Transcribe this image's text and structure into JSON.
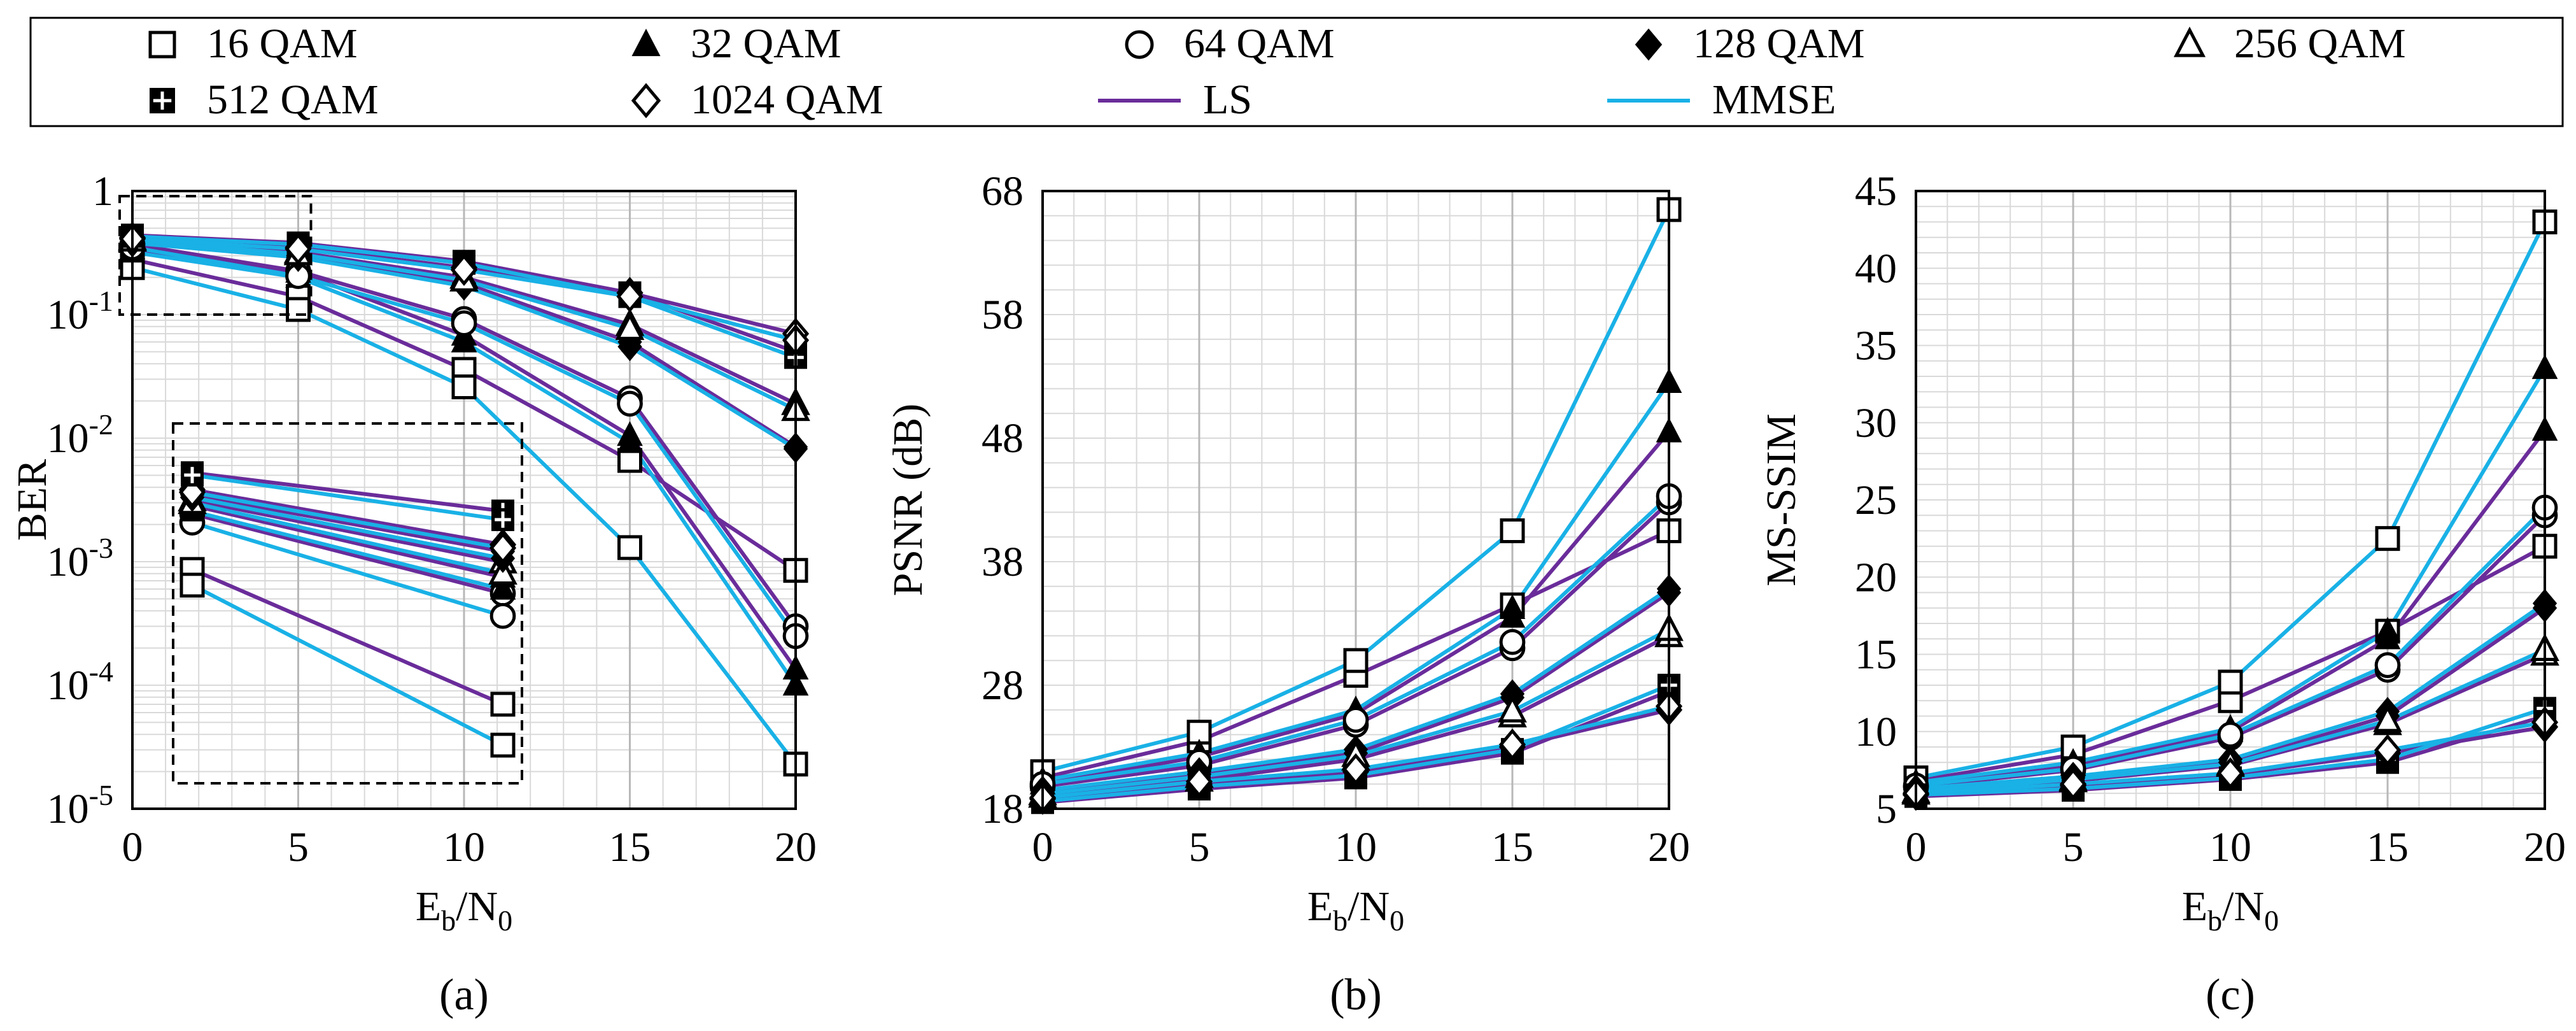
{
  "legend": {
    "entries": [
      {
        "key": "qam16",
        "label": "16 QAM",
        "marker": "square-open"
      },
      {
        "key": "qam32",
        "label": "32 QAM",
        "marker": "triangle-filled"
      },
      {
        "key": "qam64",
        "label": "64 QAM",
        "marker": "circle-open"
      },
      {
        "key": "qam128",
        "label": "128 QAM",
        "marker": "diamond-filled"
      },
      {
        "key": "qam256",
        "label": "256 QAM",
        "marker": "triangle-open"
      },
      {
        "key": "qam512",
        "label": "512 QAM",
        "marker": "square-plus-filled"
      },
      {
        "key": "qam1024",
        "label": "1024 QAM",
        "marker": "diamond-open"
      },
      {
        "key": "ls",
        "label": "LS",
        "line": "#6a2c9a"
      },
      {
        "key": "mmse",
        "label": "MMSE",
        "line": "#19b1e6"
      }
    ]
  },
  "colors": {
    "ls": "#6a2c9a",
    "mmse": "#19b1e6",
    "grid": "#d9d9d9",
    "inset": "#000000"
  },
  "chart_data": [
    {
      "id": "a",
      "type": "line",
      "panel_label": "(a)",
      "ylabel": "BER",
      "xlabel": "Eb/N0",
      "xlabel_main": "E",
      "xlabel_sub1": "b",
      "xlabel_mid": "/N",
      "xlabel_sub2": "0",
      "yscale": "log",
      "ylim": [
        1e-05,
        1
      ],
      "xlim": [
        0,
        20
      ],
      "x": [
        0,
        5,
        10,
        15,
        20
      ],
      "xticks": [
        "0",
        "5",
        "10",
        "15",
        "20"
      ],
      "yticks": [
        {
          "value": 1,
          "base": "1",
          "exp": ""
        },
        {
          "value": 0.1,
          "base": "10",
          "exp": "-1"
        },
        {
          "value": 0.01,
          "base": "10",
          "exp": "-2"
        },
        {
          "value": 0.001,
          "base": "10",
          "exp": "-3"
        },
        {
          "value": 0.0001,
          "base": "10",
          "exp": "-4"
        },
        {
          "value": 1e-05,
          "base": "10",
          "exp": "-5"
        }
      ],
      "series": [
        {
          "mod": "qam16",
          "est": "ls",
          "values": [
            0.28,
            0.14,
            0.036,
            0.0066,
            0.00085
          ]
        },
        {
          "mod": "qam16",
          "est": "mmse",
          "values": [
            0.24,
            0.11,
            0.026,
            0.0013,
            2.3e-05
          ]
        },
        {
          "mod": "qam32",
          "est": "ls",
          "values": [
            0.34,
            0.22,
            0.068,
            0.0105,
            0.000135
          ]
        },
        {
          "mod": "qam32",
          "est": "mmse",
          "values": [
            0.32,
            0.2,
            0.06,
            0.0092,
            0.0001
          ]
        },
        {
          "mod": "qam64",
          "est": "ls",
          "values": [
            0.37,
            0.225,
            0.092,
            0.021,
            0.0003
          ]
        },
        {
          "mod": "qam64",
          "est": "mmse",
          "values": [
            0.35,
            0.205,
            0.085,
            0.019,
            0.00025
          ]
        },
        {
          "mod": "qam128",
          "est": "ls",
          "values": [
            0.39,
            0.3,
            0.18,
            0.06,
            0.0085
          ]
        },
        {
          "mod": "qam128",
          "est": "mmse",
          "values": [
            0.38,
            0.29,
            0.17,
            0.055,
            0.0082
          ]
        },
        {
          "mod": "qam256",
          "est": "ls",
          "values": [
            0.41,
            0.32,
            0.2,
            0.083,
            0.019
          ]
        },
        {
          "mod": "qam256",
          "est": "mmse",
          "values": [
            0.4,
            0.31,
            0.19,
            0.077,
            0.017
          ]
        },
        {
          "mod": "qam512",
          "est": "ls",
          "values": [
            0.44,
            0.38,
            0.27,
            0.15,
            0.05
          ]
        },
        {
          "mod": "qam512",
          "est": "mmse",
          "values": [
            0.43,
            0.37,
            0.26,
            0.14,
            0.045
          ]
        },
        {
          "mod": "qam1024",
          "est": "ls",
          "values": [
            0.42,
            0.35,
            0.24,
            0.15,
            0.07
          ]
        },
        {
          "mod": "qam1024",
          "est": "mmse",
          "values": [
            0.41,
            0.34,
            0.23,
            0.14,
            0.062
          ]
        }
      ],
      "inset": {
        "description": "zoomed view of Eb/N0 = 0 to 5, BER 10^-1 to 1",
        "x": [
          0,
          5
        ],
        "series": [
          {
            "mod": "qam16",
            "est": "ls",
            "values": [
              0.265,
              0.135
            ]
          },
          {
            "mod": "qam16",
            "est": "mmse",
            "values": [
              0.245,
              0.11
            ]
          },
          {
            "mod": "qam64",
            "est": "ls",
            "values": [
              0.35,
              0.235
            ]
          },
          {
            "mod": "qam64",
            "est": "mmse",
            "values": [
              0.335,
              0.21
            ]
          },
          {
            "mod": "qam32",
            "est": "ls",
            "values": [
              0.365,
              0.255
            ]
          },
          {
            "mod": "qam32",
            "est": "mmse",
            "values": [
              0.355,
              0.24
            ]
          },
          {
            "mod": "qam256",
            "est": "ls",
            "values": [
              0.375,
              0.275
            ]
          },
          {
            "mod": "qam256",
            "est": "mmse",
            "values": [
              0.37,
              0.26
            ]
          },
          {
            "mod": "qam128",
            "est": "ls",
            "values": [
              0.385,
              0.29
            ]
          },
          {
            "mod": "qam128",
            "est": "mmse",
            "values": [
              0.38,
              0.28
            ]
          },
          {
            "mod": "qam1024",
            "est": "ls",
            "values": [
              0.395,
              0.3
            ]
          },
          {
            "mod": "qam1024",
            "est": "mmse",
            "values": [
              0.39,
              0.295
            ]
          },
          {
            "mod": "qam512",
            "est": "ls",
            "values": [
              0.43,
              0.355
            ]
          },
          {
            "mod": "qam512",
            "est": "mmse",
            "values": [
              0.425,
              0.34
            ]
          }
        ]
      }
    },
    {
      "id": "b",
      "type": "line",
      "panel_label": "(b)",
      "ylabel": "PSNR (dB)",
      "xlabel": "Eb/N0",
      "xlabel_main": "E",
      "xlabel_sub1": "b",
      "xlabel_mid": "/N",
      "xlabel_sub2": "0",
      "yscale": "linear",
      "ylim": [
        18,
        68
      ],
      "xlim": [
        0,
        20
      ],
      "x": [
        0,
        5,
        10,
        15,
        20
      ],
      "xticks": [
        "0",
        "5",
        "10",
        "15",
        "20"
      ],
      "yticks": [
        {
          "value": 18,
          "base": "18",
          "exp": ""
        },
        {
          "value": 28,
          "base": "28",
          "exp": ""
        },
        {
          "value": 38,
          "base": "38",
          "exp": ""
        },
        {
          "value": 48,
          "base": "48",
          "exp": ""
        },
        {
          "value": 58,
          "base": "58",
          "exp": ""
        },
        {
          "value": 68,
          "base": "68",
          "exp": ""
        }
      ],
      "series": [
        {
          "mod": "qam16",
          "est": "ls",
          "values": [
            20.5,
            23.5,
            28.8,
            34.5,
            40.5
          ]
        },
        {
          "mod": "qam16",
          "est": "mmse",
          "values": [
            21,
            24.2,
            30,
            40.5,
            66.5
          ]
        },
        {
          "mod": "qam32",
          "est": "ls",
          "values": [
            20,
            22.2,
            25.7,
            33.5,
            48.5
          ]
        },
        {
          "mod": "qam32",
          "est": "mmse",
          "values": [
            20.3,
            22.5,
            26,
            34.2,
            52.5
          ]
        },
        {
          "mod": "qam64",
          "est": "ls",
          "values": [
            19.8,
            21.5,
            24.8,
            31,
            42.8
          ]
        },
        {
          "mod": "qam64",
          "est": "mmse",
          "values": [
            20,
            21.8,
            25.2,
            31.5,
            43.3
          ]
        },
        {
          "mod": "qam128",
          "est": "ls",
          "values": [
            19.3,
            20.8,
            22.5,
            27,
            35.5
          ]
        },
        {
          "mod": "qam128",
          "est": "mmse",
          "values": [
            19.5,
            21,
            22.8,
            27.3,
            35.8
          ]
        },
        {
          "mod": "qam256",
          "est": "ls",
          "values": [
            19,
            20.3,
            22,
            25.5,
            32
          ]
        },
        {
          "mod": "qam256",
          "est": "mmse",
          "values": [
            19.2,
            20.6,
            22.3,
            25.9,
            32.5
          ]
        },
        {
          "mod": "qam512",
          "est": "ls",
          "values": [
            18.5,
            19.6,
            20.5,
            22.5,
            27.5
          ]
        },
        {
          "mod": "qam512",
          "est": "mmse",
          "values": [
            18.6,
            19.8,
            20.7,
            22.8,
            28
          ]
        },
        {
          "mod": "qam1024",
          "est": "ls",
          "values": [
            18.8,
            20,
            21,
            23,
            26
          ]
        },
        {
          "mod": "qam1024",
          "est": "mmse",
          "values": [
            18.9,
            20.2,
            21.2,
            23.2,
            26.3
          ]
        }
      ]
    },
    {
      "id": "c",
      "type": "line",
      "panel_label": "(c)",
      "ylabel": "MS-SSIM",
      "xlabel": "Eb/N0",
      "xlabel_main": "E",
      "xlabel_sub1": "b",
      "xlabel_mid": "/N",
      "xlabel_sub2": "0",
      "yscale": "linear",
      "ylim": [
        5,
        45
      ],
      "xlim": [
        0,
        20
      ],
      "x": [
        0,
        5,
        10,
        15,
        20
      ],
      "xticks": [
        "0",
        "5",
        "10",
        "15",
        "20"
      ],
      "yticks": [
        {
          "value": 5,
          "base": "5",
          "exp": ""
        },
        {
          "value": 10,
          "base": "10",
          "exp": ""
        },
        {
          "value": 15,
          "base": "15",
          "exp": ""
        },
        {
          "value": 20,
          "base": "20",
          "exp": ""
        },
        {
          "value": 25,
          "base": "25",
          "exp": ""
        },
        {
          "value": 30,
          "base": "30",
          "exp": ""
        },
        {
          "value": 35,
          "base": "35",
          "exp": ""
        },
        {
          "value": 40,
          "base": "40",
          "exp": ""
        },
        {
          "value": 45,
          "base": "45",
          "exp": ""
        }
      ],
      "series": [
        {
          "mod": "qam16",
          "est": "ls",
          "values": [
            6.8,
            8.5,
            12,
            16.5,
            22
          ]
        },
        {
          "mod": "qam16",
          "est": "mmse",
          "values": [
            7,
            9,
            13.2,
            22.5,
            43
          ]
        },
        {
          "mod": "qam32",
          "est": "ls",
          "values": [
            6.6,
            7.8,
            10,
            16,
            29.5
          ]
        },
        {
          "mod": "qam32",
          "est": "mmse",
          "values": [
            6.7,
            8,
            10.2,
            16.5,
            33.5
          ]
        },
        {
          "mod": "qam64",
          "est": "ls",
          "values": [
            6.4,
            7.5,
            9.6,
            14,
            24
          ]
        },
        {
          "mod": "qam64",
          "est": "mmse",
          "values": [
            6.5,
            7.6,
            9.8,
            14.3,
            24.5
          ]
        },
        {
          "mod": "qam128",
          "est": "ls",
          "values": [
            6.2,
            7,
            8,
            11,
            18
          ]
        },
        {
          "mod": "qam128",
          "est": "mmse",
          "values": [
            6.3,
            7.1,
            8.2,
            11.3,
            18.3
          ]
        },
        {
          "mod": "qam256",
          "est": "ls",
          "values": [
            6,
            6.8,
            7.8,
            10.5,
            15
          ]
        },
        {
          "mod": "qam256",
          "est": "mmse",
          "values": [
            6.1,
            6.9,
            7.9,
            10.7,
            15.3
          ]
        },
        {
          "mod": "qam512",
          "est": "ls",
          "values": [
            5.8,
            6.2,
            6.9,
            8,
            11
          ]
        },
        {
          "mod": "qam512",
          "est": "mmse",
          "values": [
            5.9,
            6.3,
            7,
            8.2,
            11.5
          ]
        },
        {
          "mod": "qam1024",
          "est": "ls",
          "values": [
            5.9,
            6.5,
            7.2,
            8.6,
            10.3
          ]
        },
        {
          "mod": "qam1024",
          "est": "mmse",
          "values": [
            6,
            6.6,
            7.3,
            8.8,
            10.6
          ]
        }
      ]
    }
  ]
}
